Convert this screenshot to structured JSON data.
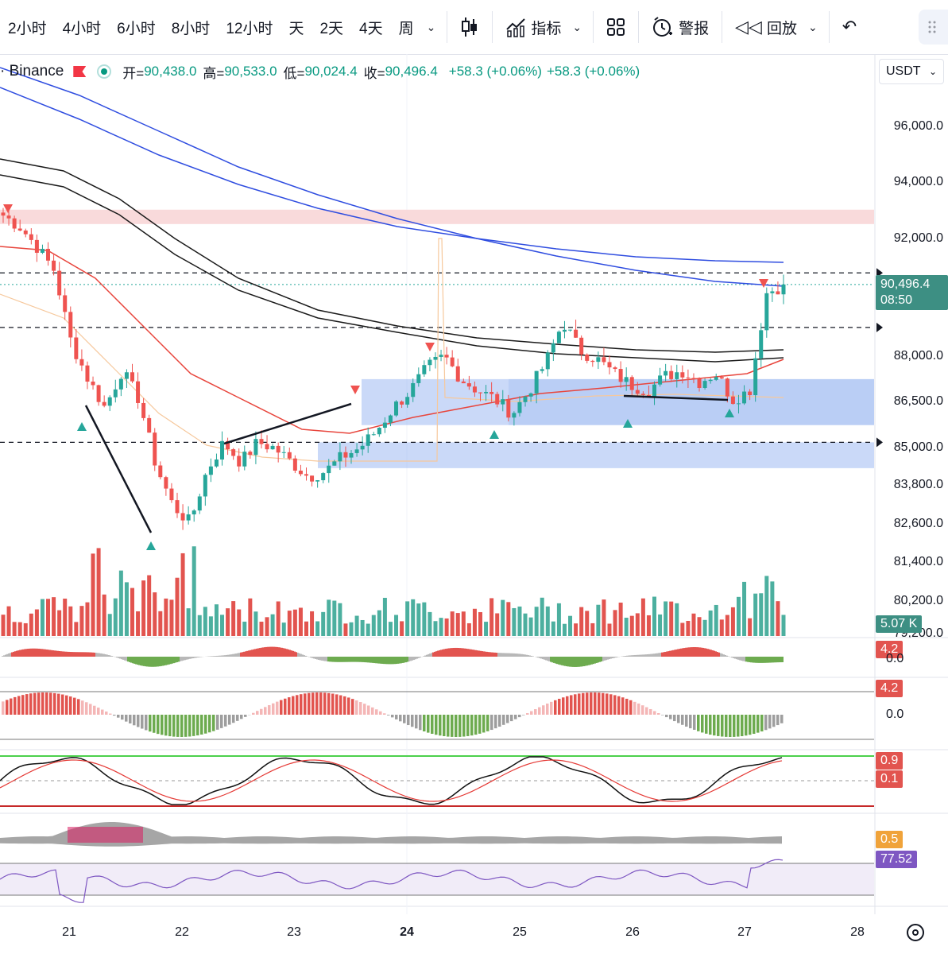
{
  "toolbar": {
    "timeframes": [
      "2小时",
      "4小时",
      "6小时",
      "8小时",
      "12小时",
      "天",
      "2天",
      "4天",
      "周"
    ],
    "indicators_label": "指标",
    "alerts_label": "警报",
    "replay_label": "回放"
  },
  "legend": {
    "symbol": "· Binance",
    "open_key": "开=",
    "open": "90,438.0",
    "high_key": "高=",
    "high": "90,533.0",
    "low_key": "低=",
    "low": "90,024.4",
    "close_key": "收=",
    "close": "90,496.4",
    "change1": "+58.3 (+0.06%)",
    "change2": "+58.3 (+0.06%)"
  },
  "currency": "USDT",
  "price_axis": {
    "ticks": [
      {
        "label": "96,000.0",
        "value": 96000
      },
      {
        "label": "94,000.0",
        "value": 94000
      },
      {
        "label": "92,000.0",
        "value": 92000
      },
      {
        "label": "88,000.0",
        "value": 88000
      },
      {
        "label": "86,500.0",
        "value": 86500
      },
      {
        "label": "85,000.0",
        "value": 85000
      },
      {
        "label": "83,800.0",
        "value": 83800
      },
      {
        "label": "82,600.0",
        "value": 82600
      },
      {
        "label": "81,400.0",
        "value": 81400
      },
      {
        "label": "80,200.0",
        "value": 80200
      },
      {
        "label": "79,200.0",
        "value": 79200
      }
    ],
    "last_price": "90,496.4",
    "countdown": "08:50",
    "volume_badge": "5.07 K"
  },
  "indicator_badges": {
    "ind1": "4.2",
    "ind1_zero": "0.0",
    "ind2": "4.2",
    "ind2_zero": "0.0",
    "ind3_hi": "0.9",
    "ind3_lo": "0.1",
    "ind4": "0.5",
    "rsi": "77.52"
  },
  "time_axis": [
    "21",
    "22",
    "23",
    "24",
    "25",
    "26",
    "27",
    "28"
  ],
  "colors": {
    "up": "#26a69a",
    "down": "#ef5350",
    "upvol": "#4caf9f",
    "downvol": "#e2544f",
    "ema_blue": "#2f4de0",
    "ema_red": "#e8453c",
    "ema_black": "#1a1a1a",
    "zone_red": "#f8d3d5",
    "zone_blue": "#9fb9f2",
    "rsi": "#7e57c2",
    "last_price_badge": "#3d8f83"
  },
  "chart_data": {
    "type": "candlestick",
    "x": [
      "21",
      "22",
      "23",
      "24",
      "25",
      "26",
      "27",
      "28"
    ],
    "price_range": [
      79200,
      96500
    ],
    "close_path": [
      92900,
      92500,
      91800,
      91000,
      88500,
      87200,
      86200,
      87500,
      86500,
      84200,
      82800,
      82200,
      84000,
      85000,
      84300,
      85000,
      84800,
      84300,
      83800,
      84000,
      84500,
      84800,
      85400,
      86200,
      86800,
      87600,
      88000,
      87200,
      86800,
      86500,
      86000,
      86800,
      87800,
      89200,
      88200,
      87900,
      87400,
      87000,
      86800,
      87300,
      87500,
      87100,
      87400,
      86500,
      86800,
      90200,
      90496
    ],
    "levels": [
      {
        "name": "upper-dashed",
        "value": 90900
      },
      {
        "name": "middle-dashed",
        "value": 89000
      },
      {
        "name": "lower-dashed",
        "value": 85000
      }
    ],
    "zones": [
      {
        "name": "supply-zone",
        "from": 92600,
        "to": 93100
      },
      {
        "name": "demand-zone-1",
        "from": 85600,
        "to": 87200
      },
      {
        "name": "demand-zone-2",
        "from": 84100,
        "to": 85000
      }
    ],
    "rsi_last": 77.52,
    "volume_last": "5.07 K"
  }
}
